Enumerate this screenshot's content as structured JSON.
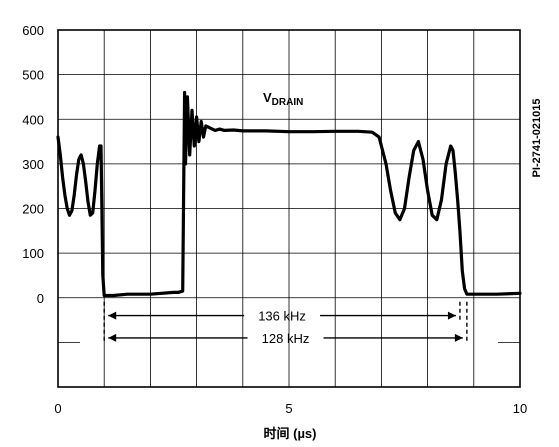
{
  "chart_data": {
    "type": "line",
    "xlabel": "时间 (µs)",
    "xlim": [
      0,
      10
    ],
    "ylim": [
      -200,
      600
    ],
    "x_ticks": [
      "0",
      "5",
      "10"
    ],
    "y_ticks": [
      "600",
      "500",
      "400",
      "300",
      "200",
      "100",
      "0"
    ],
    "grid": true,
    "series_label": {
      "main": "V",
      "sub": "DRAIN"
    },
    "side_label": "PI-2741-021015",
    "series": [
      {
        "name": "VDRAIN",
        "x": [
          0.0,
          0.05,
          0.1,
          0.15,
          0.2,
          0.25,
          0.3,
          0.35,
          0.4,
          0.45,
          0.5,
          0.55,
          0.6,
          0.65,
          0.7,
          0.75,
          0.8,
          0.85,
          0.9,
          0.93,
          0.95,
          0.97,
          1.0,
          1.2,
          1.5,
          2.0,
          2.5,
          2.6,
          2.7,
          2.72,
          2.74,
          2.76,
          2.8,
          2.85,
          2.9,
          2.95,
          3.0,
          3.05,
          3.1,
          3.15,
          3.2,
          3.3,
          3.4,
          3.5,
          3.6,
          3.8,
          4.0,
          4.5,
          5.0,
          5.5,
          6.0,
          6.5,
          6.8,
          6.95,
          7.0,
          7.1,
          7.2,
          7.3,
          7.4,
          7.5,
          7.6,
          7.7,
          7.8,
          7.9,
          8.0,
          8.1,
          8.2,
          8.3,
          8.4,
          8.5,
          8.55,
          8.6,
          8.65,
          8.7,
          8.75,
          8.8,
          8.85,
          8.88,
          8.9,
          8.95,
          9.0,
          9.5,
          10.0
        ],
        "values": [
          360,
          320,
          270,
          230,
          200,
          185,
          195,
          230,
          275,
          310,
          320,
          300,
          260,
          215,
          185,
          190,
          240,
          300,
          340,
          340,
          200,
          50,
          5,
          5,
          8,
          8,
          12,
          12,
          15,
          250,
          460,
          300,
          450,
          320,
          420,
          340,
          405,
          350,
          395,
          360,
          385,
          380,
          375,
          378,
          375,
          376,
          374,
          374,
          372,
          372,
          373,
          373,
          371,
          360,
          340,
          300,
          240,
          190,
          175,
          200,
          270,
          330,
          350,
          310,
          240,
          185,
          175,
          220,
          300,
          340,
          330,
          280,
          220,
          150,
          60,
          20,
          8,
          8,
          8,
          8,
          8,
          8,
          10
        ]
      }
    ],
    "annotations": [
      {
        "label": "136 kHz",
        "x_start": 1.0,
        "x_end": 8.7,
        "y": -40
      },
      {
        "label": "128 kHz",
        "x_start": 1.0,
        "x_end": 8.85,
        "y": -90
      }
    ]
  }
}
